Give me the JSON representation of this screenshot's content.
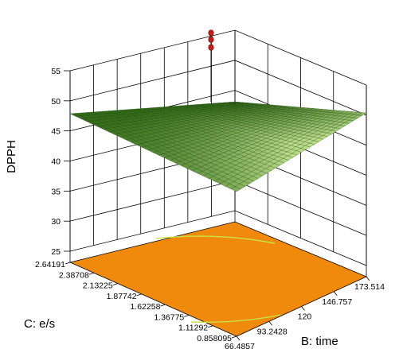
{
  "chart_data": {
    "type": "surface3d",
    "title": "",
    "zlabel": "DPPH",
    "xlabel": "B: time",
    "ylabel": "C: e/s",
    "z_ticks": [
      "25",
      "30",
      "35",
      "40",
      "45",
      "50",
      "55"
    ],
    "x_ticks": [
      "66.4857",
      "93.2428",
      "120",
      "146.757",
      "173.514"
    ],
    "y_ticks": [
      "0.858095",
      "1.11292",
      "1.36775",
      "1.62258",
      "1.87742",
      "2.13225",
      "2.38708",
      "2.64191"
    ],
    "zlim": [
      25,
      55
    ],
    "xlim": [
      66.4857,
      173.514
    ],
    "ylim": [
      0.858095,
      2.64191
    ],
    "surface_corners": {
      "low_time_low_es": 41.5,
      "low_time_high_es": 41.0,
      "high_time_high_es": 41.5,
      "high_time_low_es": 26.5
    },
    "design_points": [
      {
        "time": 120,
        "es": 1.75,
        "dpph": 48.6
      },
      {
        "time": 120,
        "es": 1.75,
        "dpph": 47.5
      },
      {
        "time": 120,
        "es": 1.75,
        "dpph": 46.2
      }
    ],
    "grid": true,
    "colors": {
      "surface_light": "#b9dc88",
      "surface_dark": "#2f6a14",
      "mesh": "#1b3d0a",
      "floor": "#f08a0d",
      "contour": "#c8e646",
      "points": "#cc1a1a"
    }
  }
}
